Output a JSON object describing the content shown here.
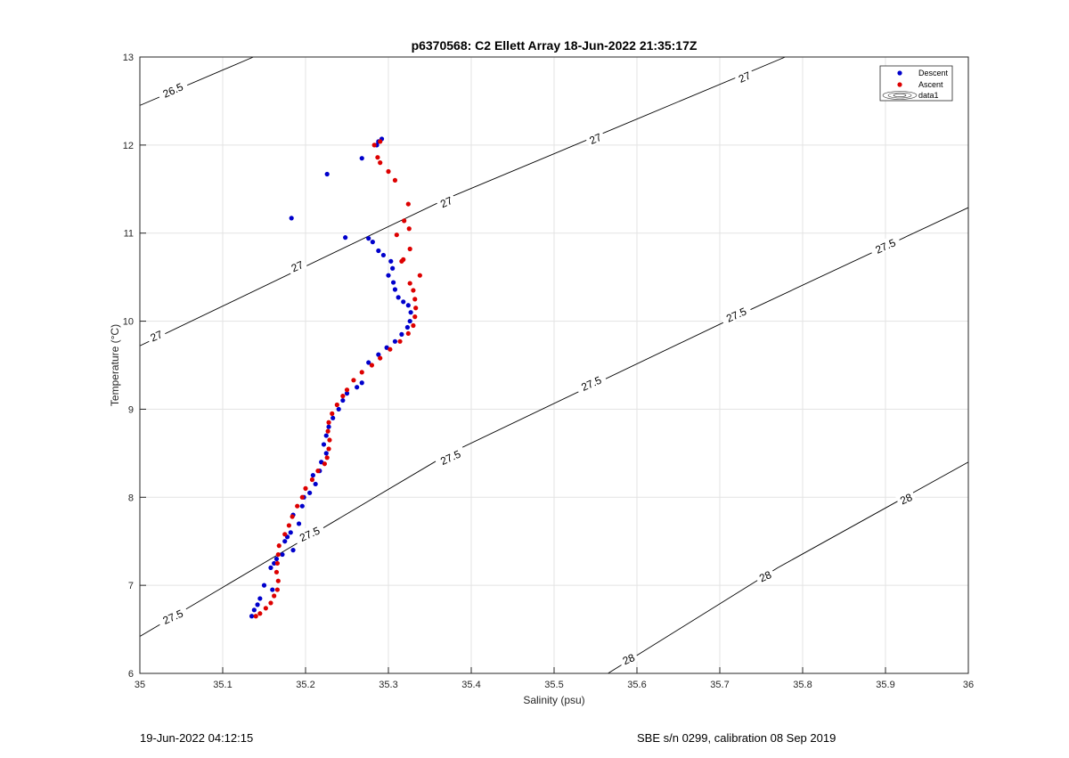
{
  "chart_data": {
    "type": "scatter",
    "title": "p6370568: C2 Ellett Array 18-Jun-2022 21:35:17Z",
    "xlabel": "Salinity (psu)",
    "ylabel": "Temperature (°C)",
    "xlim": [
      35,
      36
    ],
    "ylim": [
      6,
      13
    ],
    "xticks": [
      35,
      35.1,
      35.2,
      35.3,
      35.4,
      35.5,
      35.6,
      35.7,
      35.8,
      35.9,
      36
    ],
    "xtick_labels": [
      "35",
      "35.1",
      "35.2",
      "35.3",
      "35.4",
      "35.5",
      "35.6",
      "35.7",
      "35.8",
      "35.9",
      "36"
    ],
    "yticks": [
      6,
      7,
      8,
      9,
      10,
      11,
      12,
      13
    ],
    "ytick_labels": [
      "6",
      "7",
      "8",
      "9",
      "10",
      "11",
      "12",
      "13"
    ],
    "grid": true,
    "legend_position": "top-right",
    "legend": [
      "Descent",
      "Ascent",
      "data1"
    ],
    "series": [
      {
        "name": "Descent",
        "color": "#0000cc",
        "points": [
          [
            35.292,
            12.07
          ],
          [
            35.288,
            12.04
          ],
          [
            35.286,
            12.0
          ],
          [
            35.268,
            11.85
          ],
          [
            35.226,
            11.67
          ],
          [
            35.183,
            11.17
          ],
          [
            35.248,
            10.95
          ],
          [
            35.276,
            10.94
          ],
          [
            35.281,
            10.9
          ],
          [
            35.288,
            10.8
          ],
          [
            35.294,
            10.75
          ],
          [
            35.303,
            10.68
          ],
          [
            35.305,
            10.6
          ],
          [
            35.3,
            10.52
          ],
          [
            35.306,
            10.44
          ],
          [
            35.308,
            10.36
          ],
          [
            35.312,
            10.27
          ],
          [
            35.318,
            10.22
          ],
          [
            35.324,
            10.18
          ],
          [
            35.327,
            10.1
          ],
          [
            35.326,
            10.0
          ],
          [
            35.323,
            9.93
          ],
          [
            35.316,
            9.85
          ],
          [
            35.308,
            9.77
          ],
          [
            35.298,
            9.7
          ],
          [
            35.288,
            9.62
          ],
          [
            35.276,
            9.53
          ],
          [
            35.268,
            9.3
          ],
          [
            35.262,
            9.25
          ],
          [
            35.25,
            9.18
          ],
          [
            35.245,
            9.1
          ],
          [
            35.24,
            9.0
          ],
          [
            35.233,
            8.9
          ],
          [
            35.228,
            8.8
          ],
          [
            35.225,
            8.7
          ],
          [
            35.222,
            8.6
          ],
          [
            35.225,
            8.5
          ],
          [
            35.219,
            8.4
          ],
          [
            35.217,
            8.3
          ],
          [
            35.209,
            8.25
          ],
          [
            35.212,
            8.15
          ],
          [
            35.205,
            8.05
          ],
          [
            35.198,
            8.0
          ],
          [
            35.196,
            7.9
          ],
          [
            35.185,
            7.8
          ],
          [
            35.192,
            7.7
          ],
          [
            35.182,
            7.6
          ],
          [
            35.178,
            7.55
          ],
          [
            35.175,
            7.5
          ],
          [
            35.185,
            7.4
          ],
          [
            35.172,
            7.35
          ],
          [
            35.165,
            7.3
          ],
          [
            35.162,
            7.25
          ],
          [
            35.158,
            7.2
          ],
          [
            35.15,
            7.0
          ],
          [
            35.16,
            6.95
          ],
          [
            35.145,
            6.85
          ],
          [
            35.142,
            6.78
          ],
          [
            35.138,
            6.72
          ],
          [
            35.135,
            6.65
          ]
        ]
      },
      {
        "name": "Ascent",
        "color": "#dd0000",
        "points": [
          [
            35.29,
            12.04
          ],
          [
            35.283,
            12.0
          ],
          [
            35.287,
            11.86
          ],
          [
            35.29,
            11.8
          ],
          [
            35.3,
            11.7
          ],
          [
            35.308,
            11.6
          ],
          [
            35.324,
            11.33
          ],
          [
            35.319,
            11.14
          ],
          [
            35.325,
            11.05
          ],
          [
            35.31,
            10.98
          ],
          [
            35.326,
            10.82
          ],
          [
            35.318,
            10.7
          ],
          [
            35.316,
            10.68
          ],
          [
            35.338,
            10.52
          ],
          [
            35.326,
            10.43
          ],
          [
            35.33,
            10.35
          ],
          [
            35.332,
            10.25
          ],
          [
            35.333,
            10.15
          ],
          [
            35.332,
            10.05
          ],
          [
            35.33,
            9.95
          ],
          [
            35.324,
            9.86
          ],
          [
            35.314,
            9.77
          ],
          [
            35.302,
            9.68
          ],
          [
            35.29,
            9.58
          ],
          [
            35.28,
            9.5
          ],
          [
            35.268,
            9.42
          ],
          [
            35.258,
            9.33
          ],
          [
            35.25,
            9.22
          ],
          [
            35.245,
            9.15
          ],
          [
            35.238,
            9.05
          ],
          [
            35.232,
            8.95
          ],
          [
            35.228,
            8.85
          ],
          [
            35.227,
            8.75
          ],
          [
            35.229,
            8.65
          ],
          [
            35.228,
            8.55
          ],
          [
            35.226,
            8.45
          ],
          [
            35.223,
            8.38
          ],
          [
            35.215,
            8.3
          ],
          [
            35.208,
            8.2
          ],
          [
            35.2,
            8.1
          ],
          [
            35.196,
            8.0
          ],
          [
            35.19,
            7.9
          ],
          [
            35.184,
            7.78
          ],
          [
            35.18,
            7.68
          ],
          [
            35.175,
            7.58
          ],
          [
            35.168,
            7.45
          ],
          [
            35.167,
            7.35
          ],
          [
            35.166,
            7.25
          ],
          [
            35.165,
            7.15
          ],
          [
            35.167,
            7.05
          ],
          [
            35.166,
            6.95
          ],
          [
            35.162,
            6.88
          ],
          [
            35.158,
            6.8
          ],
          [
            35.152,
            6.74
          ],
          [
            35.145,
            6.68
          ],
          [
            35.14,
            6.65
          ]
        ]
      }
    ],
    "contour_labels": [
      {
        "text": "26.5",
        "x": 35.04,
        "y": 12.62
      },
      {
        "text": "27",
        "x": 35.73,
        "y": 12.77
      },
      {
        "text": "27",
        "x": 35.55,
        "y": 12.07
      },
      {
        "text": "27",
        "x": 35.37,
        "y": 11.35
      },
      {
        "text": "27",
        "x": 35.19,
        "y": 10.62
      },
      {
        "text": "27",
        "x": 35.02,
        "y": 9.83
      },
      {
        "text": "27.5",
        "x": 35.9,
        "y": 10.85
      },
      {
        "text": "27.5",
        "x": 35.72,
        "y": 10.07
      },
      {
        "text": "27.5",
        "x": 35.545,
        "y": 9.29
      },
      {
        "text": "27.5",
        "x": 35.375,
        "y": 8.45
      },
      {
        "text": "27.5",
        "x": 35.205,
        "y": 7.58
      },
      {
        "text": "27.5",
        "x": 35.04,
        "y": 6.64
      },
      {
        "text": "28",
        "x": 35.925,
        "y": 7.98
      },
      {
        "text": "28",
        "x": 35.755,
        "y": 7.1
      },
      {
        "text": "28",
        "x": 35.59,
        "y": 6.16
      }
    ],
    "contour_lines": [
      {
        "level": "26.5",
        "points": [
          [
            35.0,
            12.45
          ],
          [
            35.137,
            13.0
          ]
        ]
      },
      {
        "level": "27",
        "points": [
          [
            35.0,
            9.72
          ],
          [
            35.37,
            11.39
          ],
          [
            35.779,
            13.0
          ]
        ]
      },
      {
        "level": "27.5",
        "points": [
          [
            35.0,
            6.42
          ],
          [
            35.37,
            8.48
          ],
          [
            35.73,
            10.1
          ],
          [
            36.0,
            11.29
          ]
        ]
      },
      {
        "level": "28",
        "points": [
          [
            35.565,
            6.0
          ],
          [
            35.77,
            7.2
          ],
          [
            36.0,
            8.4
          ]
        ]
      }
    ]
  },
  "footer": {
    "left": "19-Jun-2022 04:12:15",
    "right": "SBE s/n 0299, calibration 08 Sep 2019"
  }
}
